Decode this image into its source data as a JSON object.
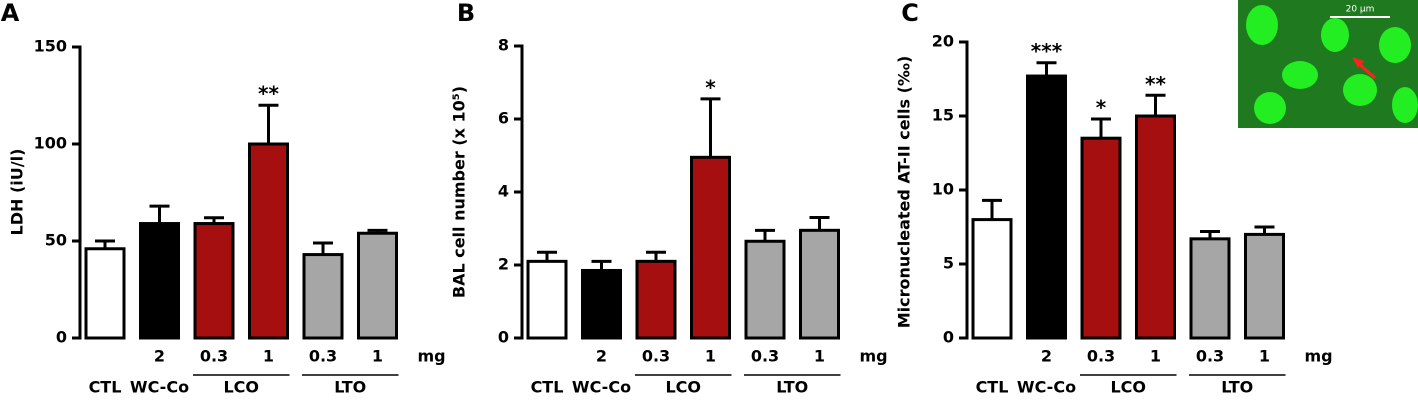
{
  "chart_data": [
    {
      "type": "bar",
      "panel_label": "A",
      "ylabel": "LDH (iU/l)",
      "categories": [
        null,
        "2",
        "0.3",
        "1",
        "0.3",
        "1"
      ],
      "dose_unit": "mg",
      "groups": [
        {
          "label": "CTL",
          "size": 1
        },
        {
          "label": "WC-Co",
          "size": 1
        },
        {
          "label": "LCO",
          "size": 2
        },
        {
          "label": "LTO",
          "size": 2
        }
      ],
      "values": [
        46,
        59,
        59,
        100,
        43,
        54
      ],
      "errors": [
        4,
        9,
        3,
        20,
        6,
        1.5
      ],
      "significance": [
        null,
        null,
        null,
        "**",
        null,
        null
      ],
      "colors": [
        "#ffffff",
        "#000000",
        "#a50f0f",
        "#a50f0f",
        "#a6a6a6",
        "#a6a6a6"
      ],
      "ylim": [
        0,
        150
      ],
      "yticks": [
        0,
        50,
        100,
        150
      ]
    },
    {
      "type": "bar",
      "panel_label": "B",
      "ylabel": "BAL cell number (x 10⁵)",
      "categories": [
        null,
        "2",
        "0.3",
        "1",
        "0.3",
        "1"
      ],
      "dose_unit": "mg",
      "groups": [
        {
          "label": "CTL",
          "size": 1
        },
        {
          "label": "WC-Co",
          "size": 1
        },
        {
          "label": "LCO",
          "size": 2
        },
        {
          "label": "LTO",
          "size": 2
        }
      ],
      "values": [
        2.1,
        1.85,
        2.1,
        4.95,
        2.65,
        2.95
      ],
      "errors": [
        0.25,
        0.25,
        0.25,
        1.6,
        0.3,
        0.35
      ],
      "significance": [
        null,
        null,
        null,
        "*",
        null,
        null
      ],
      "colors": [
        "#ffffff",
        "#000000",
        "#a50f0f",
        "#a50f0f",
        "#a6a6a6",
        "#a6a6a6"
      ],
      "ylim": [
        0,
        8
      ],
      "yticks": [
        0,
        2,
        4,
        6,
        8
      ]
    },
    {
      "type": "bar",
      "panel_label": "C",
      "ylabel": "Micronucleated AT-II cells (‰)",
      "categories": [
        null,
        "2",
        "0.3",
        "1",
        "0.3",
        "1"
      ],
      "dose_unit": "mg",
      "groups": [
        {
          "label": "CTL",
          "size": 1
        },
        {
          "label": "WC-Co",
          "size": 1
        },
        {
          "label": "LCO",
          "size": 2
        },
        {
          "label": "LTO",
          "size": 2
        }
      ],
      "values": [
        8.0,
        17.7,
        13.5,
        15.0,
        6.7,
        7.0
      ],
      "errors": [
        1.3,
        0.9,
        1.3,
        1.4,
        0.5,
        0.5
      ],
      "significance": [
        null,
        "***",
        "*",
        "**",
        null,
        null
      ],
      "colors": [
        "#ffffff",
        "#000000",
        "#a50f0f",
        "#a50f0f",
        "#a6a6a6",
        "#a6a6a6"
      ],
      "ylim": [
        0,
        20
      ],
      "yticks": [
        0,
        5,
        10,
        15,
        20
      ]
    }
  ],
  "inset": {
    "scale_label": "20 µm"
  }
}
